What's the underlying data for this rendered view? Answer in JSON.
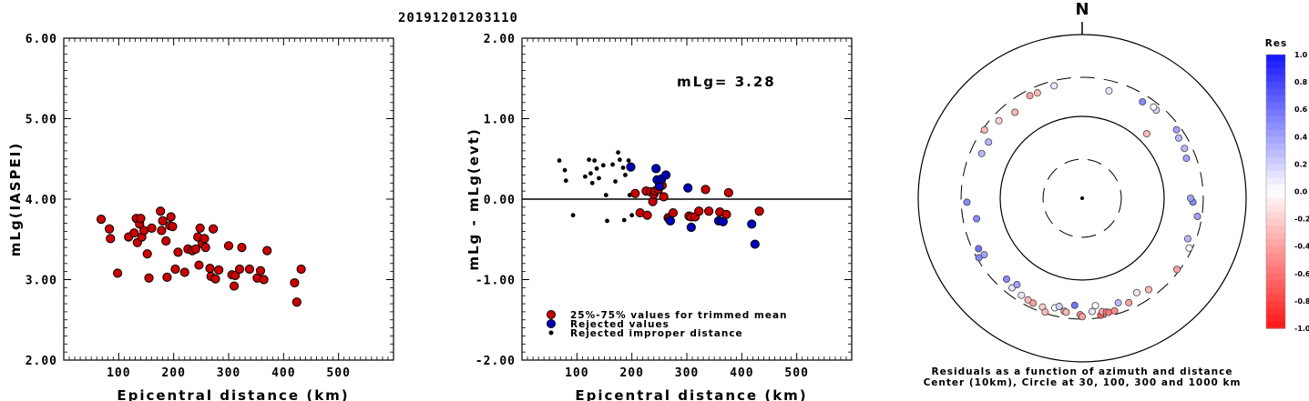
{
  "title": "20191201203110",
  "chart_data": [
    {
      "type": "scatter",
      "name": "mLg vs distance",
      "xlabel": "Epicentral distance (km)",
      "ylabel": "mLg(IASPEI)",
      "xlim": [
        0,
        600
      ],
      "ylim": [
        2.0,
        6.0
      ],
      "xticks": [
        "100",
        "200",
        "300",
        "400",
        "500"
      ],
      "yticks": [
        "2.00",
        "3.00",
        "4.00",
        "5.00",
        "6.00"
      ],
      "series": [
        {
          "color": "#cc0000",
          "points": [
            [
              68,
              3.75
            ],
            [
              83,
              3.63
            ],
            [
              85,
              3.51
            ],
            [
              98,
              3.08
            ],
            [
              118,
              3.53
            ],
            [
              128,
              3.58
            ],
            [
              132,
              3.76
            ],
            [
              134,
              3.46
            ],
            [
              138,
              3.69
            ],
            [
              140,
              3.76
            ],
            [
              142,
              3.53
            ],
            [
              146,
              3.61
            ],
            [
              152,
              3.32
            ],
            [
              155,
              3.02
            ],
            [
              160,
              3.64
            ],
            [
              176,
              3.85
            ],
            [
              178,
              3.61
            ],
            [
              180,
              3.73
            ],
            [
              186,
              3.48
            ],
            [
              188,
              3.03
            ],
            [
              193,
              3.67
            ],
            [
              195,
              3.78
            ],
            [
              198,
              3.66
            ],
            [
              203,
              3.13
            ],
            [
              208,
              3.34
            ],
            [
              220,
              3.09
            ],
            [
              226,
              3.38
            ],
            [
              234,
              3.36
            ],
            [
              240,
              3.38
            ],
            [
              244,
              3.53
            ],
            [
              246,
              3.18
            ],
            [
              248,
              3.64
            ],
            [
              252,
              3.45
            ],
            [
              256,
              3.51
            ],
            [
              258,
              3.4
            ],
            [
              266,
              3.14
            ],
            [
              268,
              3.04
            ],
            [
              272,
              3.63
            ],
            [
              276,
              3.01
            ],
            [
              282,
              3.12
            ],
            [
              300,
              3.42
            ],
            [
              306,
              3.06
            ],
            [
              310,
              2.92
            ],
            [
              312,
              3.05
            ],
            [
              320,
              3.13
            ],
            [
              324,
              3.4
            ],
            [
              338,
              3.13
            ],
            [
              352,
              3.02
            ],
            [
              358,
              3.11
            ],
            [
              364,
              3.0
            ],
            [
              370,
              3.36
            ],
            [
              420,
              2.96
            ],
            [
              424,
              2.72
            ],
            [
              432,
              3.13
            ]
          ]
        }
      ]
    },
    {
      "type": "scatter",
      "name": "mLg residuals vs distance",
      "xlabel": "Epicentral distance (km)",
      "ylabel": "mLg - mLg(evt)",
      "xlim": [
        0,
        600
      ],
      "ylim": [
        -2.0,
        2.0
      ],
      "xticks": [
        "100",
        "200",
        "300",
        "400",
        "500"
      ],
      "yticks": [
        "-2.00",
        "-1.00",
        "0.00",
        "1.00",
        "2.00"
      ],
      "annotation": "mLg= 3.28",
      "legend": [
        {
          "label": "25%-75% values for trimmed mean",
          "color": "#cc0000"
        },
        {
          "label": "Rejected values",
          "color": "#0000bb"
        },
        {
          "label": "Rejected improper distance",
          "color": "#000000"
        }
      ],
      "series": [
        {
          "name": "25%-75% values for trimmed mean",
          "color": "#cc0000",
          "points": [
            [
              206,
              0.07
            ],
            [
              215,
              -0.17
            ],
            [
              226,
              0.1
            ],
            [
              228,
              -0.2
            ],
            [
              234,
              0.09
            ],
            [
              238,
              -0.03
            ],
            [
              240,
              0.06
            ],
            [
              242,
              0.1
            ],
            [
              248,
              0.12
            ],
            [
              255,
              0.17
            ],
            [
              258,
              0.03
            ],
            [
              266,
              -0.23
            ],
            [
              268,
              -0.25
            ],
            [
              275,
              -0.17
            ],
            [
              304,
              -0.21
            ],
            [
              308,
              -0.22
            ],
            [
              315,
              -0.22
            ],
            [
              322,
              -0.15
            ],
            [
              334,
              0.12
            ],
            [
              340,
              -0.15
            ],
            [
              360,
              -0.16
            ],
            [
              372,
              -0.19
            ],
            [
              376,
              0.08
            ],
            [
              432,
              -0.15
            ]
          ]
        },
        {
          "name": "Rejected values",
          "color": "#0000bb",
          "points": [
            [
              198,
              0.4
            ],
            [
              244,
              0.38
            ],
            [
              246,
              0.24
            ],
            [
              250,
              0.16
            ],
            [
              254,
              0.25
            ],
            [
              262,
              0.3
            ],
            [
              270,
              -0.27
            ],
            [
              302,
              0.14
            ],
            [
              308,
              -0.35
            ],
            [
              358,
              -0.27
            ],
            [
              366,
              -0.28
            ],
            [
              418,
              -0.31
            ],
            [
              424,
              -0.56
            ]
          ]
        },
        {
          "name": "Rejected improper distance",
          "color": "#000000",
          "points": [
            [
              68,
              0.48
            ],
            [
              78,
              0.36
            ],
            [
              80,
              0.23
            ],
            [
              93,
              -0.2
            ],
            [
              115,
              0.28
            ],
            [
              122,
              0.49
            ],
            [
              125,
              0.32
            ],
            [
              128,
              0.2
            ],
            [
              132,
              0.48
            ],
            [
              136,
              0.38
            ],
            [
              140,
              0.26
            ],
            [
              148,
              0.42
            ],
            [
              153,
              0.05
            ],
            [
              155,
              -0.27
            ],
            [
              165,
              0.43
            ],
            [
              170,
              0.22
            ],
            [
              175,
              0.58
            ],
            [
              178,
              0.49
            ],
            [
              184,
              0.39
            ],
            [
              186,
              -0.26
            ],
            [
              188,
              0.3
            ],
            [
              194,
              0.48
            ],
            [
              196,
              0.05
            ],
            [
              200,
              -0.2
            ]
          ]
        }
      ]
    },
    {
      "type": "scatter",
      "name": "residual azimuth plot",
      "north_label": "N",
      "caption_lines": [
        "Residuals as a function of azimuth and distance",
        "Center (10km), Circle at 30, 100, 300 and 1000 km"
      ],
      "colorbar": {
        "title": "Res",
        "ticks": [
          "1.0",
          "0.8",
          "0.6",
          "0.4",
          "0.2",
          "0.0",
          "-0.2",
          "-0.4",
          "-0.6",
          "-0.8",
          "-1.0"
        ]
      },
      "stations_azimuth_deg_distance_km_residual": [
        [
          346,
          260,
          0.1
        ],
        [
          337,
          250,
          -0.3
        ],
        [
          333,
          255,
          -0.4
        ],
        [
          322,
          215,
          -0.3
        ],
        [
          313,
          245,
          -0.2
        ],
        [
          305,
          285,
          -0.3
        ],
        [
          301,
          215,
          0.3
        ],
        [
          294,
          220,
          0.3
        ],
        [
          268,
          255,
          0.5
        ],
        [
          259,
          205,
          0.5
        ],
        [
          244,
          255,
          0.6
        ],
        [
          240,
          240,
          0.4
        ],
        [
          240,
          285,
          0.5
        ],
        [
          223,
          225,
          0.5
        ],
        [
          218,
          245,
          0.1
        ],
        [
          217,
          210,
          0.4
        ],
        [
          212,
          250,
          0.1
        ],
        [
          208,
          255,
          -0.3
        ],
        [
          205,
          260,
          -0.4
        ],
        [
          200,
          260,
          -0.2
        ],
        [
          198,
          290,
          -0.3
        ],
        [
          194,
          240,
          0.0
        ],
        [
          192,
          225,
          0.2
        ],
        [
          189,
          250,
          -0.4
        ],
        [
          188,
          255,
          -0.3
        ],
        [
          184,
          205,
          0.6
        ],
        [
          181,
          265,
          -0.5
        ],
        [
          180,
          280,
          -0.4
        ],
        [
          175,
          245,
          0.1
        ],
        [
          173,
          210,
          0.0
        ],
        [
          171,
          280,
          -0.7
        ],
        [
          170,
          255,
          -0.4
        ],
        [
          168,
          265,
          -0.5
        ],
        [
          167,
          270,
          -0.6
        ],
        [
          164,
          270,
          -0.5
        ],
        [
          161,
          225,
          0.3
        ],
        [
          156,
          250,
          -0.4
        ],
        [
          150,
          215,
          -0.1
        ],
        [
          144,
          240,
          -0.3
        ],
        [
          127,
          280,
          -0.4
        ],
        [
          115,
          275,
          0.0
        ],
        [
          111,
          240,
          0.3
        ],
        [
          99,
          265,
          0.4
        ],
        [
          92,
          225,
          0.5
        ],
        [
          90,
          210,
          0.4
        ],
        [
          45,
          130,
          -0.3
        ],
        [
          40,
          255,
          0.2
        ],
        [
          38,
          260,
          0.0
        ],
        [
          32,
          245,
          0.5
        ],
        [
          14,
          225,
          0.1
        ],
        [
          54,
          265,
          0.4
        ],
        [
          58,
          245,
          0.3
        ],
        [
          64,
          245,
          0.3
        ],
        [
          69,
          230,
          0.4
        ]
      ]
    }
  ]
}
